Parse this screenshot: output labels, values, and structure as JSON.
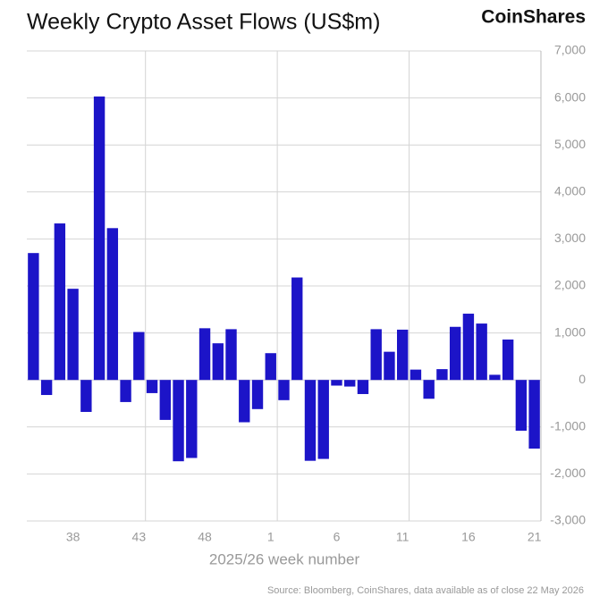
{
  "chart_data": {
    "type": "bar",
    "title": "Weekly Crypto Asset Flows (US$m)",
    "brand": "CoinShares",
    "x_label": "2025/26 week number",
    "source": "Source: Bloomberg, CoinShares, data available as of close 22 May 2026",
    "color": "#1c14c8",
    "categories": [
      null,
      null,
      null,
      "38",
      null,
      null,
      null,
      null,
      "43",
      null,
      null,
      null,
      null,
      "48",
      null,
      null,
      null,
      null,
      "1",
      null,
      null,
      null,
      null,
      "6",
      null,
      null,
      null,
      null,
      "11",
      null,
      null,
      null,
      null,
      "16",
      null,
      null,
      null,
      null,
      "21"
    ],
    "values": [
      2700,
      -320,
      3330,
      1940,
      -680,
      6030,
      3230,
      -470,
      1020,
      -280,
      -850,
      -1730,
      -1660,
      1100,
      780,
      1080,
      -900,
      -620,
      570,
      -430,
      2180,
      -1720,
      -1680,
      -120,
      -140,
      -300,
      1080,
      600,
      1070,
      220,
      -400,
      230,
      1130,
      1410,
      1200,
      110,
      860,
      -1080,
      -1460
    ],
    "ylim": [
      -3000,
      7000
    ],
    "yticks": [
      {
        "value": -3000,
        "label": "-3,000"
      },
      {
        "value": -2000,
        "label": "-2,000"
      },
      {
        "value": -1000,
        "label": "-1,000"
      },
      0,
      {
        "value": 1000,
        "label": "1,000"
      },
      {
        "value": 2000,
        "label": "2,000"
      },
      {
        "value": 3000,
        "label": "3,000"
      },
      {
        "value": 4000,
        "label": "4,000"
      },
      {
        "value": 5000,
        "label": "5,000"
      },
      {
        "value": 6000,
        "label": "6,000"
      },
      {
        "value": 7000,
        "label": "7,000"
      }
    ],
    "grid": true
  }
}
